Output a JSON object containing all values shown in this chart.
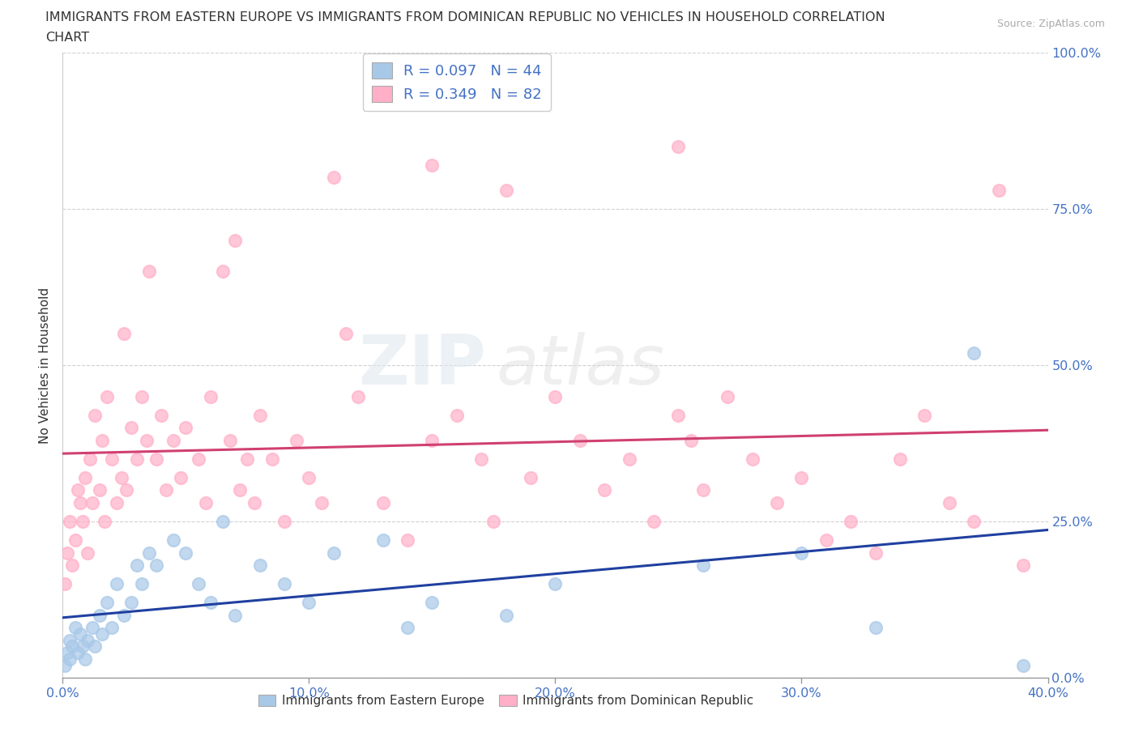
{
  "title_line1": "IMMIGRANTS FROM EASTERN EUROPE VS IMMIGRANTS FROM DOMINICAN REPUBLIC NO VEHICLES IN HOUSEHOLD CORRELATION",
  "title_line2": "CHART",
  "source": "Source: ZipAtlas.com",
  "xlim": [
    0.0,
    0.4
  ],
  "ylim": [
    0.0,
    1.0
  ],
  "ylabel": "No Vehicles in Household",
  "legend_r1": "R = 0.097   N = 44",
  "legend_r2": "R = 0.349   N = 82",
  "color_blue": "#a8c8e8",
  "color_pink": "#ffb0c8",
  "line_blue": "#2040a0",
  "line_pink": "#d04070",
  "watermark_zip": "ZIP",
  "watermark_atlas": "atlas",
  "grid_color": "#cccccc",
  "background_color": "#ffffff",
  "tick_color": "#4472c4",
  "label_color": "#333333",
  "blue_x": [
    0.001,
    0.002,
    0.003,
    0.003,
    0.004,
    0.005,
    0.006,
    0.007,
    0.008,
    0.009,
    0.01,
    0.012,
    0.013,
    0.015,
    0.016,
    0.018,
    0.02,
    0.022,
    0.025,
    0.028,
    0.03,
    0.032,
    0.035,
    0.038,
    0.045,
    0.05,
    0.055,
    0.06,
    0.065,
    0.07,
    0.08,
    0.09,
    0.1,
    0.11,
    0.13,
    0.14,
    0.15,
    0.18,
    0.2,
    0.26,
    0.3,
    0.33,
    0.37,
    0.39
  ],
  "blue_y": [
    0.02,
    0.04,
    0.03,
    0.06,
    0.05,
    0.08,
    0.04,
    0.07,
    0.05,
    0.03,
    0.06,
    0.08,
    0.05,
    0.1,
    0.07,
    0.12,
    0.08,
    0.15,
    0.1,
    0.12,
    0.18,
    0.15,
    0.2,
    0.18,
    0.22,
    0.2,
    0.15,
    0.12,
    0.25,
    0.1,
    0.18,
    0.15,
    0.12,
    0.2,
    0.22,
    0.08,
    0.12,
    0.1,
    0.15,
    0.18,
    0.2,
    0.08,
    0.52,
    0.02
  ],
  "pink_x": [
    0.001,
    0.002,
    0.003,
    0.004,
    0.005,
    0.006,
    0.007,
    0.008,
    0.009,
    0.01,
    0.011,
    0.012,
    0.013,
    0.015,
    0.016,
    0.017,
    0.018,
    0.02,
    0.022,
    0.024,
    0.025,
    0.026,
    0.028,
    0.03,
    0.032,
    0.034,
    0.035,
    0.038,
    0.04,
    0.042,
    0.045,
    0.048,
    0.05,
    0.055,
    0.058,
    0.06,
    0.065,
    0.068,
    0.07,
    0.072,
    0.075,
    0.078,
    0.08,
    0.085,
    0.09,
    0.095,
    0.1,
    0.105,
    0.11,
    0.115,
    0.12,
    0.13,
    0.14,
    0.15,
    0.16,
    0.17,
    0.175,
    0.18,
    0.19,
    0.2,
    0.21,
    0.22,
    0.23,
    0.24,
    0.25,
    0.255,
    0.26,
    0.27,
    0.28,
    0.29,
    0.3,
    0.31,
    0.32,
    0.33,
    0.34,
    0.35,
    0.36,
    0.37,
    0.38,
    0.39,
    0.25,
    0.15
  ],
  "pink_y": [
    0.15,
    0.2,
    0.25,
    0.18,
    0.22,
    0.3,
    0.28,
    0.25,
    0.32,
    0.2,
    0.35,
    0.28,
    0.42,
    0.3,
    0.38,
    0.25,
    0.45,
    0.35,
    0.28,
    0.32,
    0.55,
    0.3,
    0.4,
    0.35,
    0.45,
    0.38,
    0.65,
    0.35,
    0.42,
    0.3,
    0.38,
    0.32,
    0.4,
    0.35,
    0.28,
    0.45,
    0.65,
    0.38,
    0.7,
    0.3,
    0.35,
    0.28,
    0.42,
    0.35,
    0.25,
    0.38,
    0.32,
    0.28,
    0.8,
    0.55,
    0.45,
    0.28,
    0.22,
    0.38,
    0.42,
    0.35,
    0.25,
    0.78,
    0.32,
    0.45,
    0.38,
    0.3,
    0.35,
    0.25,
    0.42,
    0.38,
    0.3,
    0.45,
    0.35,
    0.28,
    0.32,
    0.22,
    0.25,
    0.2,
    0.35,
    0.42,
    0.28,
    0.25,
    0.78,
    0.18,
    0.85,
    0.82
  ]
}
